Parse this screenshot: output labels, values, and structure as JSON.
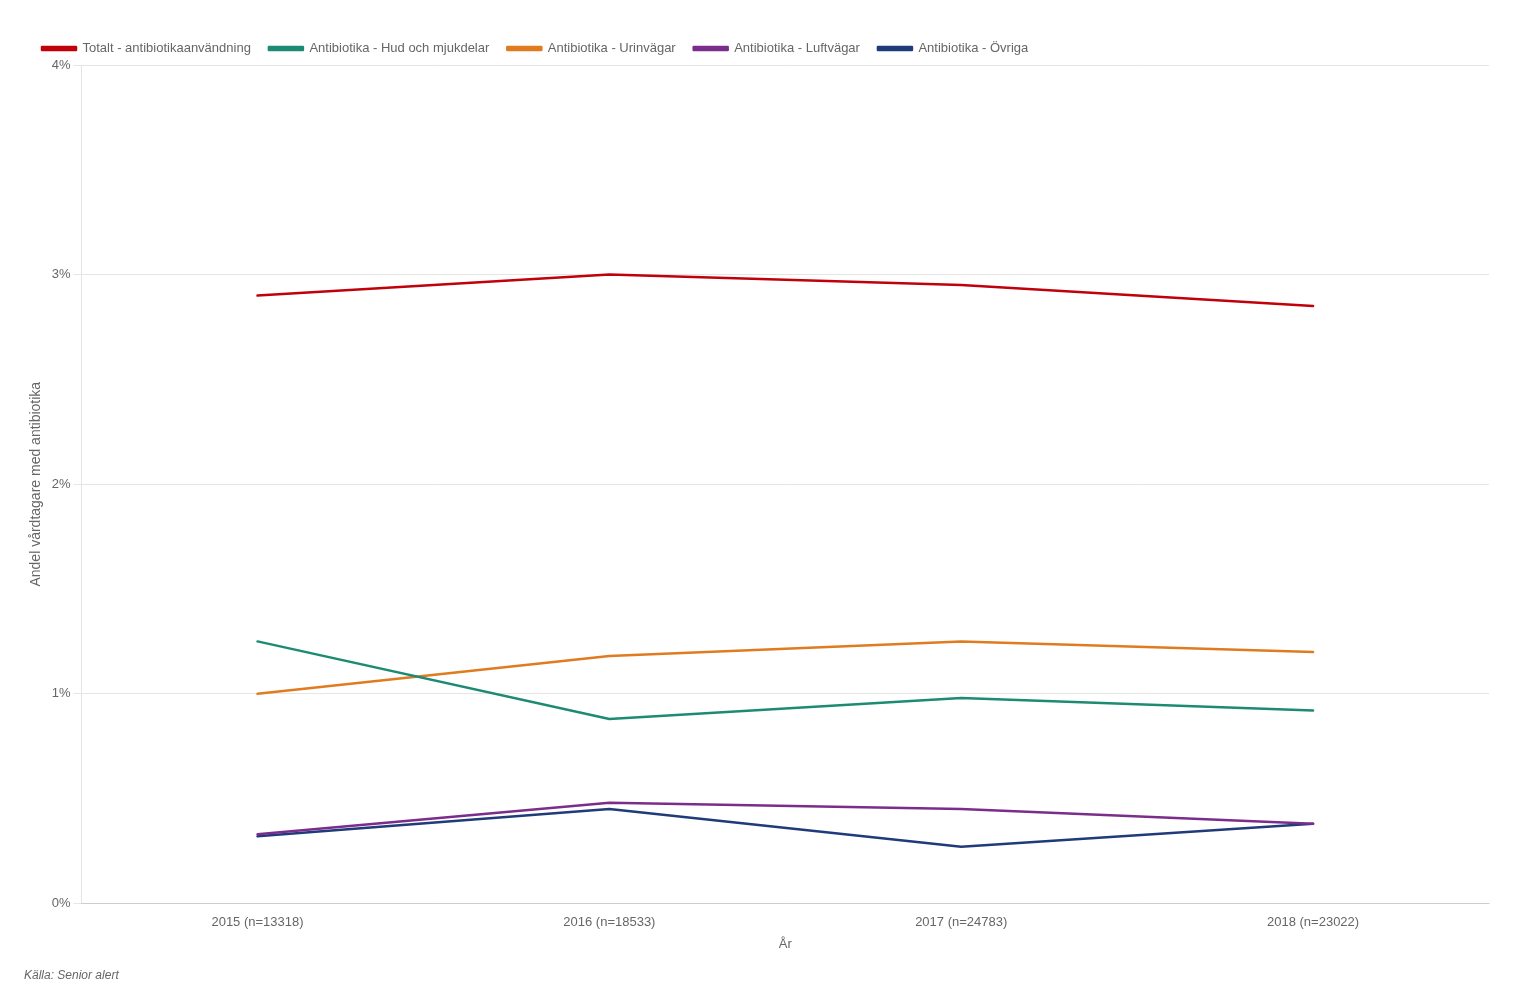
{
  "chart_data": {
    "type": "line",
    "categories": [
      "2015 (n=13318)",
      "2016 (n=18533)",
      "2017 (n=24783)",
      "2018 (n=23022)"
    ],
    "series": [
      {
        "name": "Totalt - antibiotikaanvändning",
        "color": "#C0000B",
        "values": [
          0.029,
          0.03,
          0.0295,
          0.0285
        ]
      },
      {
        "name": "Antibiotika - Hud och mjukdelar",
        "color": "#1D8B74",
        "values": [
          0.0125,
          0.0088,
          0.0098,
          0.0092
        ]
      },
      {
        "name": "Antibiotika - Urinvägar",
        "color": "#E07B20",
        "values": [
          0.01,
          0.0118,
          0.0125,
          0.012
        ]
      },
      {
        "name": "Antibiotika - Luftvägar",
        "color": "#7B2D8B",
        "values": [
          0.0033,
          0.0048,
          0.0045,
          0.0038
        ]
      },
      {
        "name": "Antibiotika - Övriga",
        "color": "#1F3B7A",
        "values": [
          0.0032,
          0.0045,
          0.0027,
          0.0038
        ]
      }
    ],
    "ylabel": "Andel vårdtagare med antibiotika",
    "xlabel": "År",
    "annotations": [
      "Källa: Senior alert"
    ],
    "ylim": [
      0,
      0.04
    ],
    "yticks": [
      {
        "value": 0,
        "label": "0%"
      },
      {
        "value": 0.01,
        "label": "1%"
      },
      {
        "value": 0.02,
        "label": "2%"
      },
      {
        "value": 0.03,
        "label": "3%"
      },
      {
        "value": 0.04,
        "label": "4%"
      }
    ],
    "grid": "y",
    "legend": "upper left"
  }
}
